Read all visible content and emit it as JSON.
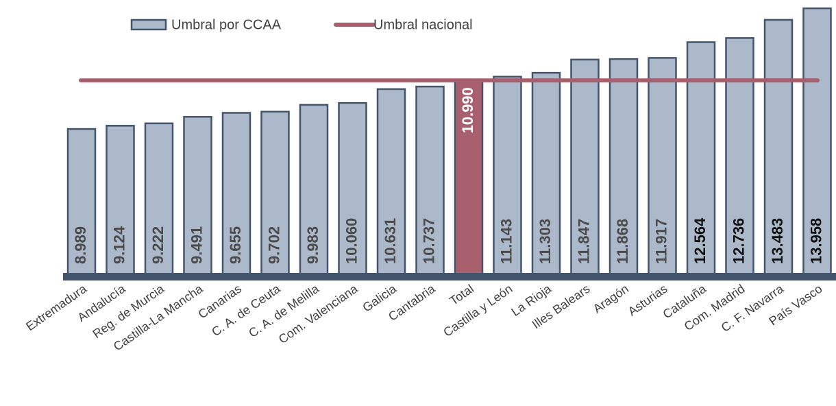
{
  "chart_data": {
    "type": "bar",
    "categories": [
      "Extremadura",
      "Andalucía",
      "Reg. de Murcia",
      "Castilla-La Mancha",
      "Canarias",
      "C. A. de Ceuta",
      "C. A. de Melilla",
      "Com. Valenciana",
      "Galicia",
      "Cantabria",
      "Total",
      "Castilla y León",
      "La Rioja",
      "Illes Balears",
      "Aragón",
      "Asturias",
      "Cataluña",
      "Com. Madrid",
      "C. F. Navarra",
      "País Vasco"
    ],
    "series": [
      {
        "name": "Umbral por CCAA",
        "color": "#acb9ca",
        "colors": [
          "#acb9ca",
          "#acb9ca",
          "#acb9ca",
          "#acb9ca",
          "#acb9ca",
          "#acb9ca",
          "#acb9ca",
          "#acb9ca",
          "#acb9ca",
          "#acb9ca",
          "#a8606f",
          "#acb9ca",
          "#acb9ca",
          "#acb9ca",
          "#acb9ca",
          "#acb9ca",
          "#acb9ca",
          "#acb9ca",
          "#acb9ca",
          "#acb9ca"
        ],
        "values": [
          8989,
          9124,
          9222,
          9491,
          9655,
          9702,
          9983,
          10060,
          10631,
          10737,
          10990,
          11143,
          11303,
          11847,
          11868,
          11917,
          12564,
          12736,
          13483,
          13958
        ],
        "value_labels": [
          "8.989",
          "9.124",
          "9.222",
          "9.491",
          "9.655",
          "9.702",
          "9.983",
          "10.060",
          "10.631",
          "10.737",
          "10.990",
          "11.143",
          "11.303",
          "11.847",
          "11.868",
          "11.917",
          "12.564",
          "12.736",
          "13.483",
          "13.958"
        ]
      },
      {
        "name": "Umbral nacional",
        "type": "line",
        "color": "#a8606f",
        "value": 10990
      }
    ],
    "ylim": [
      2920,
      14300
    ]
  }
}
